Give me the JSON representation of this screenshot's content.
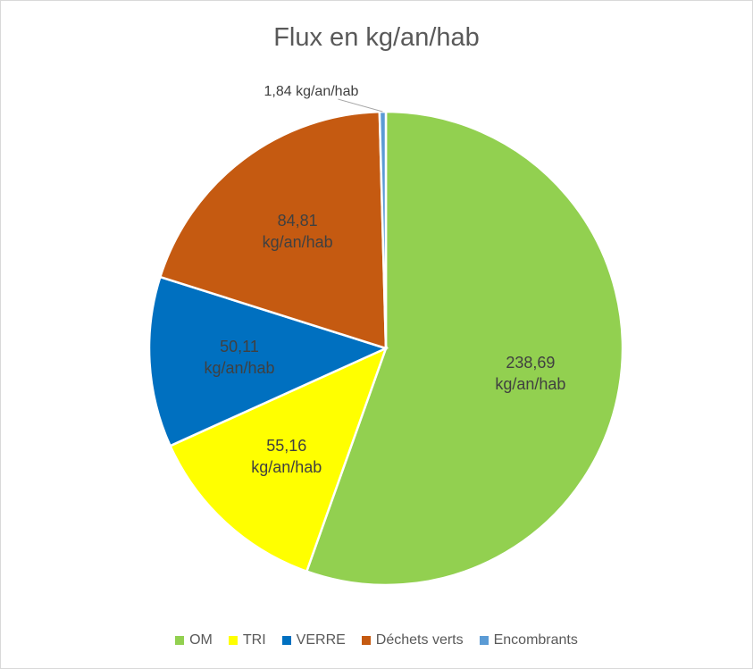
{
  "chart_data": {
    "type": "pie",
    "title": "Flux en kg/an/hab",
    "categories": [
      "OM",
      "TRI",
      "VERRE",
      "Déchets verts",
      "Encombrants"
    ],
    "values": [
      238.69,
      55.16,
      50.11,
      84.81,
      1.84
    ],
    "value_labels": [
      "238,69 kg/an/hab",
      "55,16 kg/an/hab",
      "50,11 kg/an/hab",
      "84,81 kg/an/hab",
      "1,84 kg/an/hab"
    ],
    "colors": [
      "#92d050",
      "#ffff00",
      "#0070c0",
      "#c55a11",
      "#5b9bd5"
    ],
    "legend": "bottom"
  }
}
